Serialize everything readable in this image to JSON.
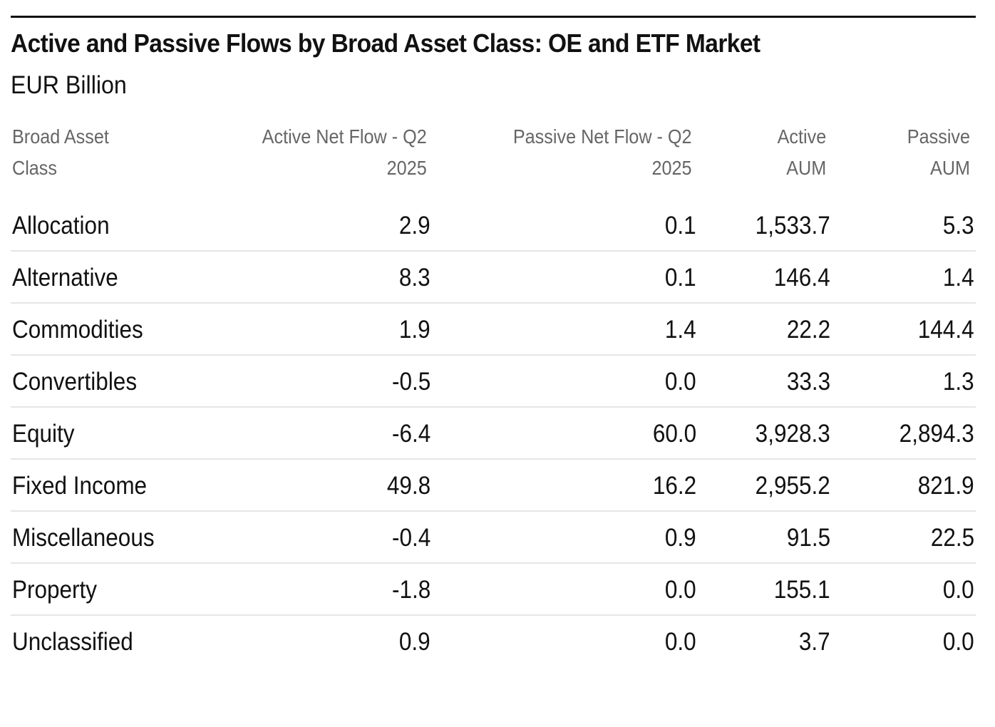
{
  "chart_data": {
    "type": "table",
    "title": "Active and Passive Flows by Broad Asset Class: OE and ETF Market",
    "subtitle": "EUR Billion",
    "columns": [
      [
        "Broad Asset",
        "Class"
      ],
      [
        "Active Net Flow - Q2",
        "2025"
      ],
      [
        "Passive Net Flow - Q2",
        "2025"
      ],
      [
        "Active",
        "AUM"
      ],
      [
        "Passive",
        "AUM"
      ]
    ],
    "rows": [
      {
        "label": "Allocation",
        "values": [
          "2.9",
          "0.1",
          "1,533.7",
          "5.3"
        ]
      },
      {
        "label": "Alternative",
        "values": [
          "8.3",
          "0.1",
          "146.4",
          "1.4"
        ]
      },
      {
        "label": "Commodities",
        "values": [
          "1.9",
          "1.4",
          "22.2",
          "144.4"
        ]
      },
      {
        "label": "Convertibles",
        "values": [
          "-0.5",
          "0.0",
          "33.3",
          "1.3"
        ]
      },
      {
        "label": "Equity",
        "values": [
          "-6.4",
          "60.0",
          "3,928.3",
          "2,894.3"
        ]
      },
      {
        "label": "Fixed Income",
        "values": [
          "49.8",
          "16.2",
          "2,955.2",
          "821.9"
        ]
      },
      {
        "label": "Miscellaneous",
        "values": [
          "-0.4",
          "0.9",
          "91.5",
          "22.5"
        ]
      },
      {
        "label": "Property",
        "values": [
          "-1.8",
          "0.0",
          "155.1",
          "0.0"
        ]
      },
      {
        "label": "Unclassified",
        "values": [
          "0.9",
          "0.0",
          "3.7",
          "0.0"
        ]
      }
    ]
  }
}
